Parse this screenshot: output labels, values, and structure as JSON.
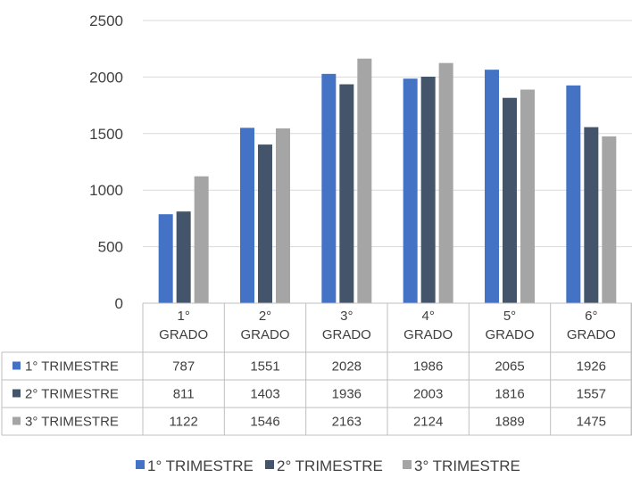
{
  "chart_data": {
    "type": "bar",
    "categories": [
      [
        "1°",
        "GRADO"
      ],
      [
        "2°",
        "GRADO"
      ],
      [
        "3°",
        "GRADO"
      ],
      [
        "4°",
        "GRADO"
      ],
      [
        "5°",
        "GRADO"
      ],
      [
        "6°",
        "GRADO"
      ]
    ],
    "series": [
      {
        "name": "1° TRIMESTRE",
        "color": "#4472C4",
        "values": [
          787,
          1551,
          2028,
          1986,
          2065,
          1926
        ]
      },
      {
        "name": "2° TRIMESTRE",
        "color": "#44546A",
        "values": [
          811,
          1403,
          1936,
          2003,
          1816,
          1557
        ]
      },
      {
        "name": "3° TRIMESTRE",
        "color": "#A5A5A5",
        "values": [
          1122,
          1546,
          2163,
          2124,
          1889,
          1475
        ]
      }
    ],
    "yticks": [
      0,
      500,
      1000,
      1500,
      2000,
      2500
    ],
    "ylim": [
      0,
      2500
    ],
    "grid": true,
    "data_table": true,
    "legend_position": "bottom"
  }
}
